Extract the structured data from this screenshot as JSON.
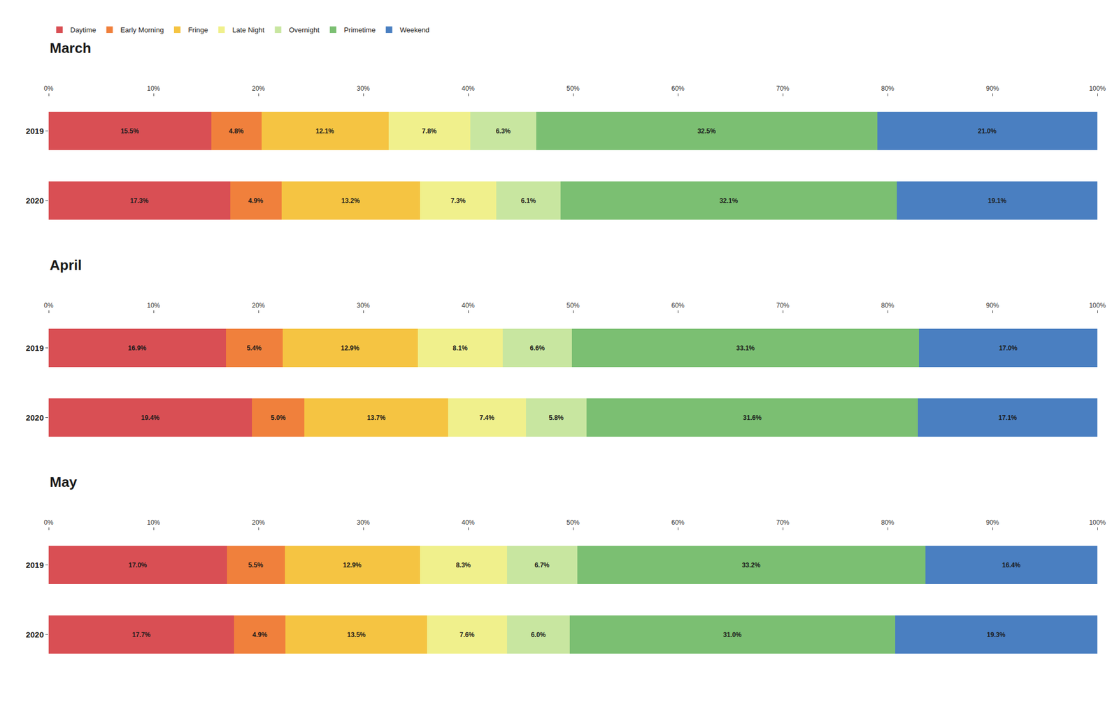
{
  "chart_data": [
    {
      "type": "bar",
      "title": "March",
      "orientation": "horizontal",
      "stacked": true,
      "data_labels": true,
      "grid": false,
      "legend": "upper left",
      "categories": [
        "2019",
        "2020"
      ],
      "xlim": [
        0,
        100
      ],
      "xticks": [
        {
          "value": 0,
          "label": "0%"
        },
        {
          "value": 10,
          "label": "10%"
        },
        {
          "value": 20,
          "label": "20%"
        },
        {
          "value": 30,
          "label": "30%"
        },
        {
          "value": 40,
          "label": "40%"
        },
        {
          "value": 50,
          "label": "50%"
        },
        {
          "value": 60,
          "label": "60%"
        },
        {
          "value": 70,
          "label": "70%"
        },
        {
          "value": 80,
          "label": "80%"
        },
        {
          "value": 90,
          "label": "90%"
        },
        {
          "value": 100,
          "label": "100%"
        }
      ],
      "series": [
        {
          "name": "Daytime",
          "color": "#d94f54",
          "values": [
            15.5,
            17.3
          ],
          "value_labels": [
            "15.5%",
            "17.3%"
          ]
        },
        {
          "name": "Early Morning",
          "color": "#f0803c",
          "values": [
            4.8,
            4.9
          ],
          "value_labels": [
            "4.8%",
            "4.9%"
          ]
        },
        {
          "name": "Fringe",
          "color": "#f5c442",
          "values": [
            12.1,
            13.2
          ],
          "value_labels": [
            "12.1%",
            "13.2%"
          ]
        },
        {
          "name": "Late Night",
          "color": "#f0f08c",
          "values": [
            7.8,
            7.3
          ],
          "value_labels": [
            "7.8%",
            "7.3%"
          ]
        },
        {
          "name": "Overnight",
          "color": "#c8e6a0",
          "values": [
            6.3,
            6.1
          ],
          "value_labels": [
            "6.3%",
            "6.1%"
          ]
        },
        {
          "name": "Primetime",
          "color": "#7bbf72",
          "values": [
            32.5,
            32.1
          ],
          "value_labels": [
            "32.5%",
            "32.1%"
          ]
        },
        {
          "name": "Weekend",
          "color": "#4a7fc1",
          "values": [
            21.0,
            19.1
          ],
          "value_labels": [
            "21.0%",
            "19.1%"
          ]
        }
      ]
    },
    {
      "type": "bar",
      "title": "April",
      "orientation": "horizontal",
      "stacked": true,
      "data_labels": true,
      "grid": false,
      "categories": [
        "2019",
        "2020"
      ],
      "xlim": [
        0,
        100
      ],
      "xticks": [
        {
          "value": 0,
          "label": "0%"
        },
        {
          "value": 10,
          "label": "10%"
        },
        {
          "value": 20,
          "label": "20%"
        },
        {
          "value": 30,
          "label": "30%"
        },
        {
          "value": 40,
          "label": "40%"
        },
        {
          "value": 50,
          "label": "50%"
        },
        {
          "value": 60,
          "label": "60%"
        },
        {
          "value": 70,
          "label": "70%"
        },
        {
          "value": 80,
          "label": "80%"
        },
        {
          "value": 90,
          "label": "90%"
        },
        {
          "value": 100,
          "label": "100%"
        }
      ],
      "series": [
        {
          "name": "Daytime",
          "color": "#d94f54",
          "values": [
            16.9,
            19.4
          ],
          "value_labels": [
            "16.9%",
            "19.4%"
          ]
        },
        {
          "name": "Early Morning",
          "color": "#f0803c",
          "values": [
            5.4,
            5.0
          ],
          "value_labels": [
            "5.4%",
            "5.0%"
          ]
        },
        {
          "name": "Fringe",
          "color": "#f5c442",
          "values": [
            12.9,
            13.7
          ],
          "value_labels": [
            "12.9%",
            "13.7%"
          ]
        },
        {
          "name": "Late Night",
          "color": "#f0f08c",
          "values": [
            8.1,
            7.4
          ],
          "value_labels": [
            "8.1%",
            "7.4%"
          ]
        },
        {
          "name": "Overnight",
          "color": "#c8e6a0",
          "values": [
            6.6,
            5.8
          ],
          "value_labels": [
            "6.6%",
            "5.8%"
          ]
        },
        {
          "name": "Primetime",
          "color": "#7bbf72",
          "values": [
            33.1,
            31.6
          ],
          "value_labels": [
            "33.1%",
            "31.6%"
          ]
        },
        {
          "name": "Weekend",
          "color": "#4a7fc1",
          "values": [
            17.0,
            17.1
          ],
          "value_labels": [
            "17.0%",
            "17.1%"
          ]
        }
      ]
    },
    {
      "type": "bar",
      "title": "May",
      "orientation": "horizontal",
      "stacked": true,
      "data_labels": true,
      "grid": false,
      "categories": [
        "2019",
        "2020"
      ],
      "xlim": [
        0,
        100
      ],
      "xticks": [
        {
          "value": 0,
          "label": "0%"
        },
        {
          "value": 10,
          "label": "10%"
        },
        {
          "value": 20,
          "label": "20%"
        },
        {
          "value": 30,
          "label": "30%"
        },
        {
          "value": 40,
          "label": "40%"
        },
        {
          "value": 50,
          "label": "50%"
        },
        {
          "value": 60,
          "label": "60%"
        },
        {
          "value": 70,
          "label": "70%"
        },
        {
          "value": 80,
          "label": "80%"
        },
        {
          "value": 90,
          "label": "90%"
        },
        {
          "value": 100,
          "label": "100%"
        }
      ],
      "series": [
        {
          "name": "Daytime",
          "color": "#d94f54",
          "values": [
            17.0,
            17.7
          ],
          "value_labels": [
            "17.0%",
            "17.7%"
          ]
        },
        {
          "name": "Early Morning",
          "color": "#f0803c",
          "values": [
            5.5,
            4.9
          ],
          "value_labels": [
            "5.5%",
            "4.9%"
          ]
        },
        {
          "name": "Fringe",
          "color": "#f5c442",
          "values": [
            12.9,
            13.5
          ],
          "value_labels": [
            "12.9%",
            "13.5%"
          ]
        },
        {
          "name": "Late Night",
          "color": "#f0f08c",
          "values": [
            8.3,
            7.6
          ],
          "value_labels": [
            "8.3%",
            "7.6%"
          ]
        },
        {
          "name": "Overnight",
          "color": "#c8e6a0",
          "values": [
            6.7,
            6.0
          ],
          "value_labels": [
            "6.7%",
            "6.0%"
          ]
        },
        {
          "name": "Primetime",
          "color": "#7bbf72",
          "values": [
            33.2,
            31.0
          ],
          "value_labels": [
            "33.2%",
            "31.0%"
          ]
        },
        {
          "name": "Weekend",
          "color": "#4a7fc1",
          "values": [
            16.4,
            19.3
          ],
          "value_labels": [
            "16.4%",
            "19.3%"
          ]
        }
      ]
    }
  ]
}
